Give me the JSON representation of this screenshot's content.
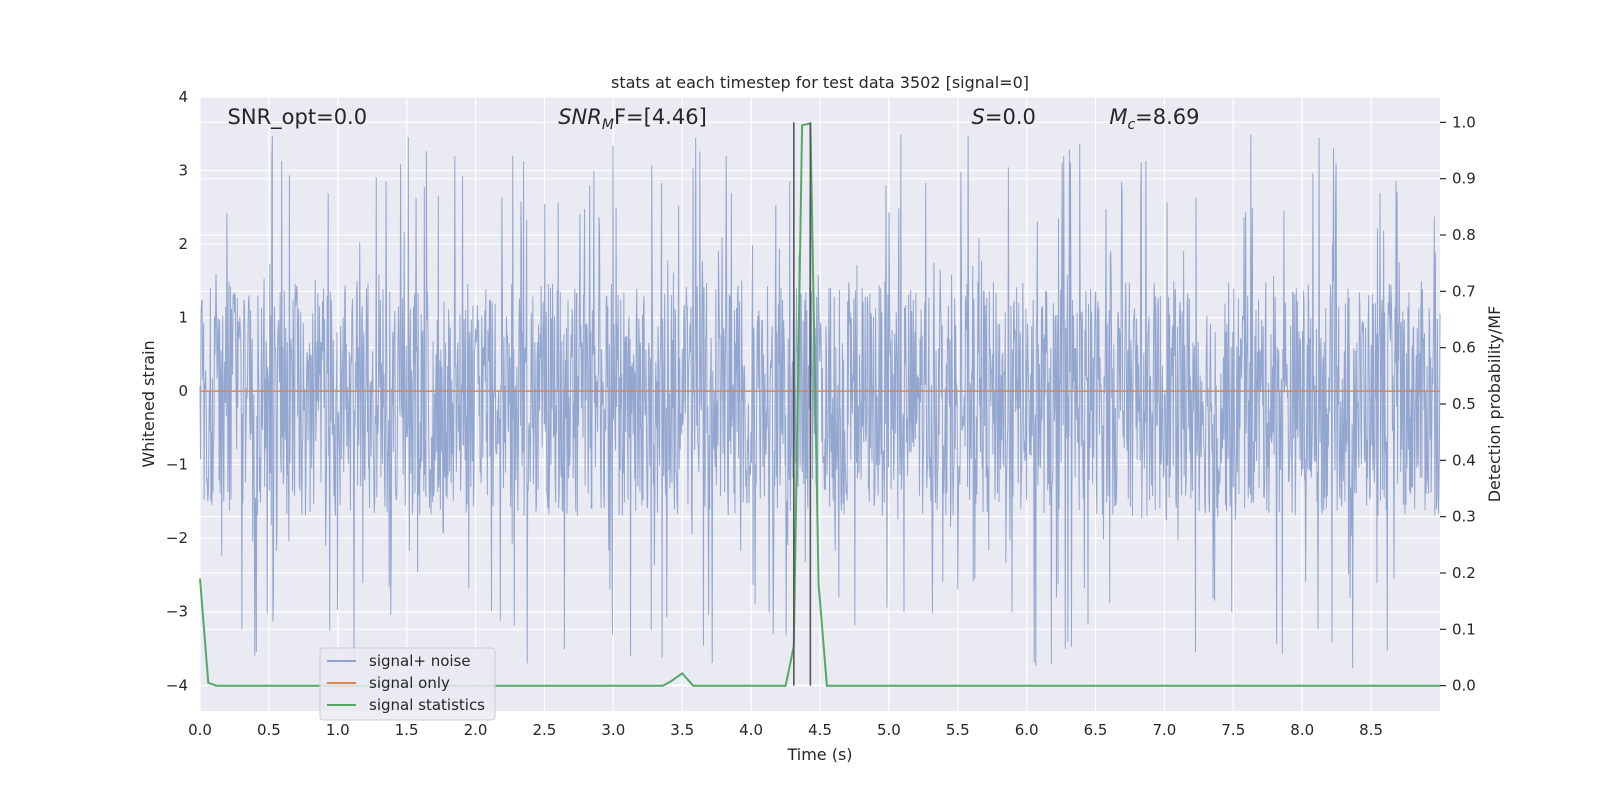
{
  "chart_data": {
    "type": "line",
    "title": "stats at each timestep for test data 3502 [signal=0]",
    "xlabel": "Time (s)",
    "ylabel": "Whitened strain",
    "y2label": "Detection probability/MF",
    "xlim": [
      0.0,
      9.0
    ],
    "ylim": [
      -4.35,
      4.0
    ],
    "y2lim": [
      -0.045,
      1.045
    ],
    "xticks": [
      "0.0",
      "0.5",
      "1.0",
      "1.5",
      "2.0",
      "2.5",
      "3.0",
      "3.5",
      "4.0",
      "4.5",
      "5.0",
      "5.5",
      "6.0",
      "6.5",
      "7.0",
      "7.5",
      "8.0",
      "8.5"
    ],
    "xtick_values": [
      0.0,
      0.5,
      1.0,
      1.5,
      2.0,
      2.5,
      3.0,
      3.5,
      4.0,
      4.5,
      5.0,
      5.5,
      6.0,
      6.5,
      7.0,
      7.5,
      8.0,
      8.5
    ],
    "yticks": [
      "4",
      "3",
      "2",
      "1",
      "0",
      "−1",
      "−2",
      "−3",
      "−4"
    ],
    "ytick_values": [
      4,
      3,
      2,
      1,
      0,
      -1,
      -2,
      -3,
      -4
    ],
    "y2ticks": [
      "1.0",
      "0.9",
      "0.8",
      "0.7",
      "0.6",
      "0.5",
      "0.4",
      "0.3",
      "0.2",
      "0.1",
      "0.0"
    ],
    "y2tick_values": [
      1.0,
      0.9,
      0.8,
      0.7,
      0.6,
      0.5,
      0.4,
      0.3,
      0.2,
      0.1,
      0.0
    ],
    "grid": true,
    "legend_position": "bottom-left",
    "annotations": [
      {
        "prefix": "SNR_opt",
        "sub": "",
        "text": "=0.0",
        "italic": false,
        "x": 0.2
      },
      {
        "prefix": "SNR",
        "sub": "M",
        "text": "F=[4.46]",
        "italic": true,
        "x": 2.6
      },
      {
        "prefix": "S",
        "sub": "",
        "text": "=0.0",
        "italic": true,
        "x": 5.6
      },
      {
        "prefix": "M",
        "sub": "c",
        "text": "=8.69",
        "italic": true,
        "x": 6.6
      }
    ],
    "vlines": [
      4.31,
      4.43
    ],
    "vline_color": "#555555",
    "series": [
      {
        "name": "signal+ noise",
        "color": "#8ea2cc",
        "axis": "left",
        "description": "whitened noise, dense band roughly between -1.7 and 1.5 with spikes up to 3.6 and down to -4.0",
        "band": [
          -1.7,
          1.5
        ],
        "extremes": [
          -4.0,
          3.6
        ]
      },
      {
        "name": "signal only",
        "color": "#dd8452",
        "axis": "left",
        "x": [
          0.0,
          9.0
        ],
        "y": [
          0.0,
          0.0
        ]
      },
      {
        "name": "signal statistics",
        "color": "#55a868",
        "axis": "right",
        "x": [
          0.0,
          0.06,
          0.12,
          3.36,
          3.42,
          3.5,
          3.58,
          4.25,
          4.31,
          4.37,
          4.43,
          4.49,
          4.55,
          9.0
        ],
        "y": [
          0.19,
          0.005,
          0.0,
          0.0,
          0.008,
          0.022,
          0.0,
          0.0,
          0.07,
          0.995,
          0.998,
          0.18,
          0.0,
          0.0
        ]
      }
    ],
    "colors": {
      "plot_bg": "#eaeaf2",
      "grid": "#ffffff",
      "text": "#262626",
      "legend_bg": "#eaeaf2",
      "legend_border": "#cccccc"
    }
  }
}
